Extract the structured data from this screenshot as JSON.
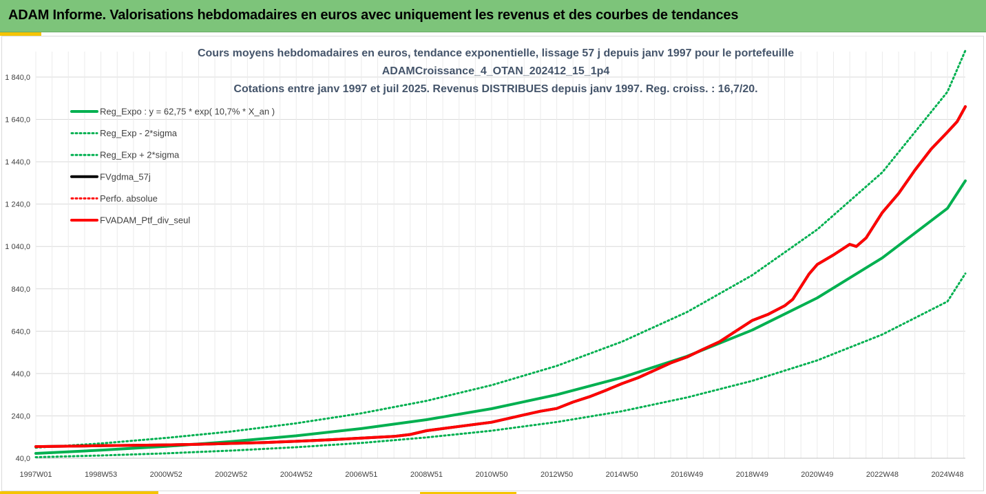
{
  "banner": {
    "title": "ADAM Informe. Valorisations hebdomadaires en euros avec uniquement les revenus et des courbes de tendances",
    "background": "#7dc47a",
    "accent_color": "#f5c400"
  },
  "chart_data": {
    "type": "line",
    "title_lines": [
      "Cours moyens hebdomadaires  en euros, tendance exponentielle, lissage 57 j depuis janv 1997 pour le portefeuille",
      "ADAMCroissance_4_OTAN_202412_15_1p4",
      "Cotations  entre janv 1997 et juil 2025. Revenus DISTRIBUES depuis janv 1997. Reg. croiss. : 16,7/20."
    ],
    "xlabel": "",
    "ylabel": "",
    "x_range": [
      1997.0,
      2025.55
    ],
    "ylim": [
      40,
      1960
    ],
    "y_ticks": [
      "40,0",
      "240,0",
      "440,0",
      "640,0",
      "840,0",
      "1 040,0",
      "1 240,0",
      "1 440,0",
      "1 640,0",
      "1 840,0"
    ],
    "x_tick_labels": [
      "1997W01",
      "1998W53",
      "2000W52",
      "2002W52",
      "2004W52",
      "2006W51",
      "2008W51",
      "2010W50",
      "2012W50",
      "2014W50",
      "2016W49",
      "2018W49",
      "2020W49",
      "2022W48",
      "2024W48"
    ],
    "x_tick_years": [
      1997.0,
      1999.0,
      2001.0,
      2003.0,
      2005.0,
      2007.0,
      2009.0,
      2011.0,
      2013.0,
      2015.0,
      2017.0,
      2019.0,
      2021.0,
      2023.0,
      2025.0
    ],
    "grid": true,
    "legend_position": "top-left",
    "series": [
      {
        "name": "Reg_Expo : y = 62,75 * exp( 10,7% *  X_an )",
        "color": "#00b050",
        "style": "solid",
        "width": 4,
        "x": [
          1997.0,
          1999.0,
          2001.0,
          2003.0,
          2005.0,
          2007.0,
          2009.0,
          2011.0,
          2013.0,
          2015.0,
          2017.0,
          2019.0,
          2021.0,
          2023.0,
          2025.0,
          2025.55
        ],
        "y": [
          62.75,
          78,
          96,
          119,
          146,
          180,
          222,
          274,
          340,
          421,
          521,
          645,
          797,
          986,
          1220,
          1350
        ]
      },
      {
        "name": "Reg_Exp - 2*sigma",
        "color": "#00b050",
        "style": "dotted",
        "width": 3,
        "x": [
          1997.0,
          1999.0,
          2001.0,
          2003.0,
          2005.0,
          2007.0,
          2009.0,
          2011.0,
          2013.0,
          2015.0,
          2017.0,
          2019.0,
          2021.0,
          2023.0,
          2025.0,
          2025.55
        ],
        "y": [
          45,
          53,
          63,
          76,
          92,
          112,
          138,
          170,
          211,
          262,
          327,
          405,
          502,
          624,
          780,
          912
        ]
      },
      {
        "name": "Reg_Exp + 2*sigma",
        "color": "#00b050",
        "style": "dotted",
        "width": 3,
        "x": [
          1997.0,
          1999.0,
          2001.0,
          2003.0,
          2005.0,
          2007.0,
          2009.0,
          2011.0,
          2013.0,
          2015.0,
          2017.0,
          2019.0,
          2021.0,
          2023.0,
          2025.0,
          2025.55
        ],
        "y": [
          90,
          110,
          136,
          166,
          205,
          252,
          311,
          385,
          476,
          590,
          730,
          904,
          1120,
          1390,
          1770,
          1965
        ]
      },
      {
        "name": "FVgdma_57j",
        "color": "#000000",
        "style": "solid",
        "width": 4,
        "x": [
          1997.0,
          1998.0,
          1999.0,
          2000.0,
          2001.0,
          2002.0,
          2003.0,
          2004.0,
          2005.0,
          2006.0,
          2007.0,
          2008.0,
          2008.5,
          2009.0,
          2009.5,
          2010.0,
          2011.0,
          2012.0,
          2012.5,
          2013.0,
          2013.5,
          2014.0,
          2014.5,
          2015.0,
          2015.5,
          2016.0,
          2016.5,
          2017.0,
          2017.5,
          2018.0,
          2018.5,
          2019.0,
          2019.5,
          2020.0,
          2020.25,
          2020.5,
          2020.75,
          2021.0,
          2021.5,
          2022.0,
          2022.2,
          2022.5,
          2022.75,
          2023.0,
          2023.5,
          2024.0,
          2024.5,
          2025.0,
          2025.3,
          2025.55
        ],
        "y": [
          95,
          97,
          99,
          101,
          103,
          106,
          110,
          114,
          120,
          127,
          135,
          143,
          152,
          170,
          180,
          190,
          210,
          245,
          262,
          275,
          305,
          330,
          360,
          392,
          420,
          455,
          490,
          518,
          555,
          590,
          640,
          690,
          720,
          760,
          790,
          850,
          910,
          955,
          1000,
          1050,
          1040,
          1080,
          1140,
          1200,
          1290,
          1400,
          1500,
          1580,
          1630,
          1700
        ]
      },
      {
        "name": "Perfo. absolue",
        "color": "#ff0000",
        "style": "dotted",
        "width": 3,
        "x": [
          1997.0,
          1998.0,
          1999.0,
          2000.0,
          2001.0,
          2002.0,
          2003.0,
          2004.0,
          2005.0,
          2006.0,
          2007.0,
          2008.0,
          2008.5,
          2009.0,
          2009.5,
          2010.0,
          2011.0,
          2012.0,
          2012.5,
          2013.0,
          2013.5,
          2014.0,
          2014.5,
          2015.0,
          2015.5,
          2016.0,
          2016.5,
          2017.0,
          2017.5,
          2018.0,
          2018.5,
          2019.0,
          2019.5,
          2020.0,
          2020.25,
          2020.5,
          2020.75,
          2021.0,
          2021.5,
          2022.0,
          2022.2,
          2022.5,
          2022.75,
          2023.0,
          2023.5,
          2024.0,
          2024.5,
          2025.0,
          2025.3,
          2025.55
        ],
        "y": [
          95,
          97,
          99,
          101,
          103,
          106,
          110,
          114,
          120,
          127,
          135,
          143,
          152,
          170,
          180,
          190,
          210,
          245,
          262,
          275,
          305,
          330,
          360,
          392,
          420,
          455,
          490,
          518,
          555,
          590,
          640,
          690,
          720,
          760,
          790,
          850,
          910,
          955,
          1000,
          1050,
          1040,
          1080,
          1140,
          1200,
          1290,
          1400,
          1500,
          1580,
          1630,
          1700
        ]
      },
      {
        "name": "FVADAM_Ptf_div_seul",
        "color": "#ff0000",
        "style": "solid",
        "width": 4,
        "x": [
          1997.0,
          1998.0,
          1999.0,
          2000.0,
          2001.0,
          2002.0,
          2003.0,
          2004.0,
          2005.0,
          2006.0,
          2007.0,
          2008.0,
          2008.5,
          2009.0,
          2009.5,
          2010.0,
          2011.0,
          2012.0,
          2012.5,
          2013.0,
          2013.5,
          2014.0,
          2014.5,
          2015.0,
          2015.5,
          2016.0,
          2016.5,
          2017.0,
          2017.5,
          2018.0,
          2018.5,
          2019.0,
          2019.5,
          2020.0,
          2020.25,
          2020.5,
          2020.75,
          2021.0,
          2021.5,
          2022.0,
          2022.2,
          2022.5,
          2022.75,
          2023.0,
          2023.5,
          2024.0,
          2024.5,
          2025.0,
          2025.3,
          2025.55
        ],
        "y": [
          95,
          97,
          99,
          101,
          103,
          106,
          110,
          114,
          120,
          127,
          135,
          143,
          152,
          170,
          180,
          190,
          210,
          245,
          262,
          275,
          305,
          330,
          360,
          392,
          420,
          455,
          490,
          518,
          555,
          590,
          640,
          690,
          720,
          760,
          790,
          850,
          910,
          955,
          1000,
          1050,
          1040,
          1080,
          1140,
          1200,
          1290,
          1400,
          1500,
          1580,
          1630,
          1700
        ]
      }
    ]
  }
}
